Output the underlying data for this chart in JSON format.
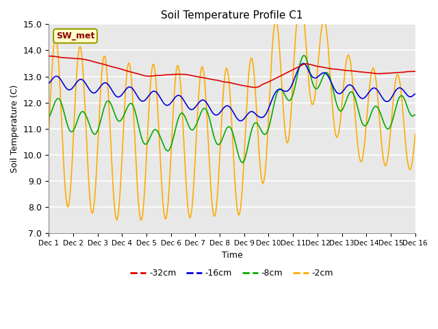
{
  "title": "Soil Temperature Profile C1",
  "xlabel": "Time",
  "ylabel": "Soil Temperature (C)",
  "ylim": [
    7.0,
    15.0
  ],
  "yticks": [
    7.0,
    8.0,
    9.0,
    10.0,
    11.0,
    12.0,
    13.0,
    14.0,
    15.0
  ],
  "background_color": "#e8e8e8",
  "plot_background": "#e8e8e8",
  "legend_label": "SW_met",
  "colors": {
    "-32cm": "#dd0000",
    "-16cm": "#0000dd",
    "-8cm": "#00aa00",
    "-2cm": "#ffaa00"
  },
  "xtick_labels": [
    "Dec 1",
    "Dec 2",
    "Dec 3",
    "Dec 4",
    "Dec 5",
    "Dec 6",
    "Dec 7",
    "Dec 8",
    "Dec 9",
    "Dec 10",
    "Dec 11",
    "Dec 12",
    "Dec 13",
    "Dec 14",
    "Dec 15",
    "Dec 16"
  ],
  "n_points": 360,
  "days": 15
}
